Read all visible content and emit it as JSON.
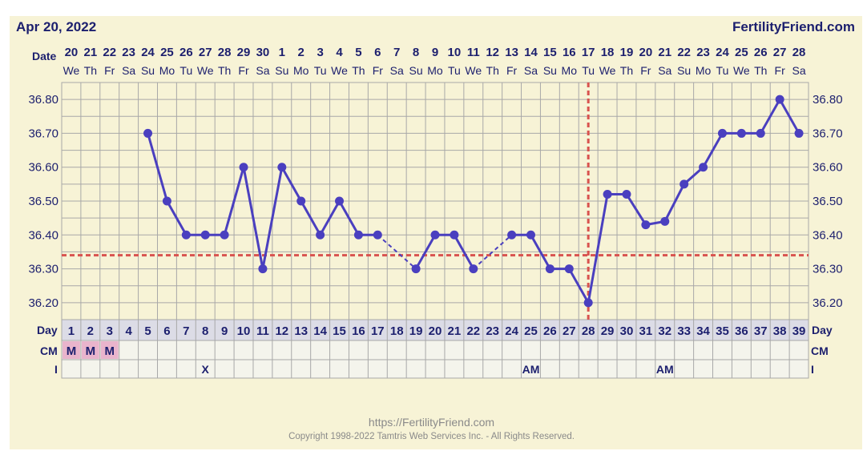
{
  "header": {
    "date": "Apr 20, 2022",
    "site": "FertilityFriend.com"
  },
  "footer": {
    "url": "https://FertilityFriend.com",
    "copyright": "Copyright 1998-2022 Tamtris Web Services Inc. - All Rights Reserved."
  },
  "colors": {
    "line": "#4a3fbf",
    "coverline": "#d9534f",
    "grid": "#a8a8a8",
    "text": "#1c1f6e",
    "band": "#dcdce6",
    "cell_bg": "#f7f3d6",
    "row_bg": "#f4f4ec",
    "menses": "#e9b4cc"
  },
  "chart_data": {
    "type": "line",
    "row_labels": {
      "date": "Date",
      "day": "Day",
      "cm": "CM",
      "intercourse": "I"
    },
    "dates": [
      "20",
      "21",
      "22",
      "23",
      "24",
      "25",
      "26",
      "27",
      "28",
      "29",
      "30",
      "1",
      "2",
      "3",
      "4",
      "5",
      "6",
      "7",
      "8",
      "9",
      "10",
      "11",
      "12",
      "13",
      "14",
      "15",
      "16",
      "17",
      "18",
      "19",
      "20",
      "21",
      "22",
      "23",
      "24",
      "25",
      "26",
      "27",
      "28"
    ],
    "weekdays": [
      "We",
      "Th",
      "Fr",
      "Sa",
      "Su",
      "Mo",
      "Tu",
      "We",
      "Th",
      "Fr",
      "Sa",
      "Su",
      "Mo",
      "Tu",
      "We",
      "Th",
      "Fr",
      "Sa",
      "Su",
      "Mo",
      "Tu",
      "We",
      "Th",
      "Fr",
      "Sa",
      "Su",
      "Mo",
      "Tu",
      "We",
      "Th",
      "Fr",
      "Sa",
      "Su",
      "Mo",
      "Tu",
      "We",
      "Th",
      "Fr",
      "Sa"
    ],
    "cycle_days": [
      "1",
      "2",
      "3",
      "4",
      "5",
      "6",
      "7",
      "8",
      "9",
      "10",
      "11",
      "12",
      "13",
      "14",
      "15",
      "16",
      "17",
      "18",
      "19",
      "20",
      "21",
      "22",
      "23",
      "24",
      "25",
      "26",
      "27",
      "28",
      "29",
      "30",
      "31",
      "32",
      "33",
      "34",
      "35",
      "36",
      "37",
      "38",
      "39"
    ],
    "temperatures": [
      null,
      null,
      null,
      null,
      36.7,
      36.5,
      36.4,
      36.4,
      36.4,
      36.6,
      36.3,
      36.6,
      36.5,
      36.4,
      36.5,
      36.4,
      36.4,
      null,
      36.3,
      36.4,
      36.4,
      36.3,
      null,
      36.4,
      36.4,
      36.3,
      36.3,
      36.2,
      36.52,
      36.52,
      36.43,
      36.44,
      36.55,
      36.6,
      36.7,
      36.7,
      36.7,
      36.8,
      36.7
    ],
    "y_ticks": [
      "36.80",
      "36.70",
      "36.60",
      "36.50",
      "36.40",
      "36.30",
      "36.20"
    ],
    "ylim": [
      36.15,
      36.85
    ],
    "coverline": 36.34,
    "ovulation_day": 28,
    "cm": [
      "M",
      "M",
      "M",
      "",
      "",
      "",
      "",
      "",
      "",
      "",
      "",
      "",
      "",
      "",
      "",
      "",
      "",
      "",
      "",
      "",
      "",
      "",
      "",
      "",
      "",
      "",
      "",
      "",
      "",
      "",
      "",
      "",
      "",
      "",
      "",
      "",
      "",
      "",
      ""
    ],
    "intercourse": [
      "",
      "",
      "",
      "",
      "",
      "",
      "",
      "X",
      "",
      "",
      "",
      "",
      "",
      "",
      "",
      "",
      "",
      "",
      "",
      "",
      "",
      "",
      "",
      "",
      "AM",
      "",
      "",
      "",
      "",
      "",
      "",
      "AM",
      "",
      "",
      "",
      "",
      "",
      "",
      ""
    ]
  }
}
